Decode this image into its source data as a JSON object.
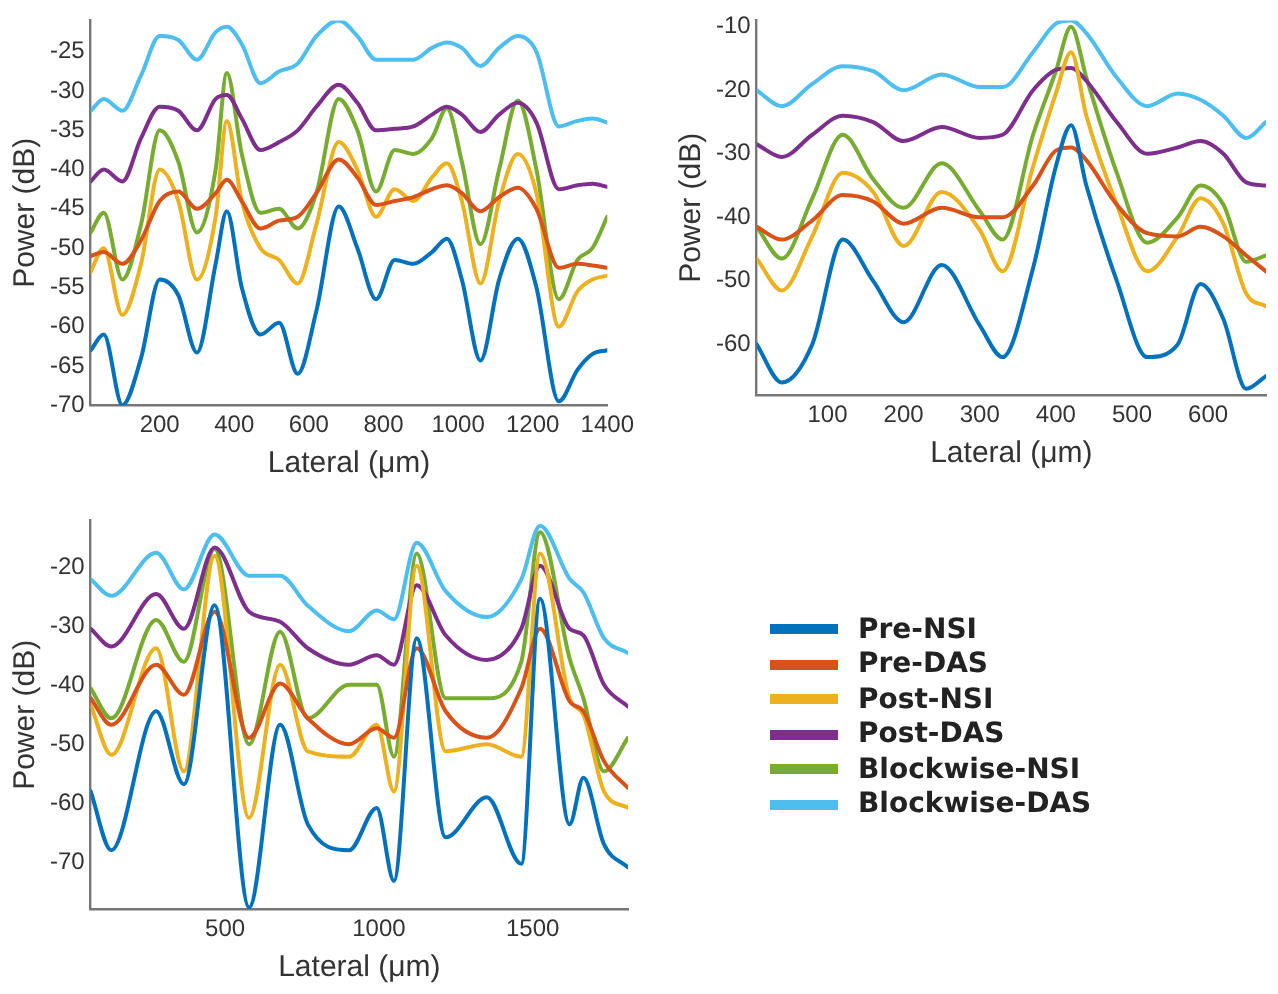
{
  "chart_data": [
    {
      "type": "line",
      "xlabel": "Lateral (μm)",
      "ylabel": "Power (dB)",
      "xlim": [
        15,
        1400
      ],
      "ylim": [
        -70,
        -21
      ],
      "xticks": [
        200,
        400,
        600,
        800,
        1000,
        1200,
        1400
      ],
      "yticks": [
        -70,
        -65,
        -60,
        -55,
        -50,
        -45,
        -40,
        -35,
        -30,
        -25
      ],
      "grid": false,
      "legend": false,
      "marker": "none",
      "x": [
        15,
        50,
        100,
        150,
        200,
        250,
        300,
        350,
        380,
        420,
        470,
        520,
        570,
        620,
        680,
        730,
        780,
        830,
        880,
        930,
        970,
        1010,
        1060,
        1110,
        1160,
        1210,
        1270,
        1320,
        1360,
        1400
      ],
      "series": [
        {
          "color": "#0072bd",
          "values": [
            -63,
            -61,
            -70,
            -64,
            -54,
            -56,
            -63.3,
            -52,
            -45.3,
            -55,
            -61,
            -59.5,
            -66,
            -58,
            -44.7,
            -50,
            -56.5,
            -51.5,
            -52,
            -50.5,
            -48.8,
            -54,
            -64.3,
            -54,
            -48.8,
            -55,
            -69.5,
            -65.5,
            -63.5,
            -63
          ]
        },
        {
          "color": "#d95319",
          "values": [
            -51,
            -50.5,
            -52,
            -49,
            -44,
            -42.8,
            -45,
            -43,
            -41.3,
            -44,
            -47.5,
            -46.5,
            -46,
            -43,
            -38.7,
            -41,
            -44.5,
            -44,
            -43.5,
            -42.5,
            -42,
            -43,
            -45.3,
            -43.5,
            -42.3,
            -45,
            -52.5,
            -52,
            -52.2,
            -52.5
          ]
        },
        {
          "color": "#edb120",
          "values": [
            -53,
            -50,
            -58.5,
            -52,
            -40,
            -44,
            -54,
            -46,
            -33.8,
            -44,
            -50,
            -51.5,
            -54.5,
            -47,
            -36.5,
            -40,
            -46,
            -42.5,
            -44,
            -41,
            -39.2,
            -44,
            -54.5,
            -44,
            -38,
            -43,
            -60,
            -55.5,
            -54,
            -53.5
          ]
        },
        {
          "color": "#7e2f8e",
          "values": [
            -41.5,
            -40,
            -41.5,
            -36,
            -32,
            -32.5,
            -35,
            -31,
            -30.5,
            -33.5,
            -37.5,
            -36.5,
            -35,
            -32,
            -29.2,
            -31.5,
            -35,
            -34.8,
            -34.5,
            -33,
            -32,
            -33,
            -35.2,
            -33,
            -31.5,
            -34,
            -42.5,
            -42,
            -41.8,
            -42.2
          ]
        },
        {
          "color": "#77ac30",
          "values": [
            -48,
            -45.5,
            -54,
            -47,
            -35,
            -39,
            -48,
            -40,
            -27.7,
            -38,
            -45.5,
            -45,
            -47.5,
            -43,
            -31,
            -35,
            -42.8,
            -37.5,
            -38,
            -36,
            -32.2,
            -39,
            -49.5,
            -40,
            -31.2,
            -40,
            -56.5,
            -51.5,
            -50,
            -46
          ]
        },
        {
          "color": "#4dbeee",
          "values": [
            -32.5,
            -31,
            -32.5,
            -28,
            -23,
            -23.5,
            -26,
            -22.5,
            -21.8,
            -24,
            -29,
            -27.5,
            -26.5,
            -23,
            -21,
            -23,
            -26,
            -26,
            -26,
            -24.5,
            -23.8,
            -24.5,
            -26.8,
            -24.5,
            -23,
            -25,
            -34.5,
            -33.8,
            -33.5,
            -34
          ]
        }
      ]
    },
    {
      "type": "line",
      "xlabel": "Lateral (μm)",
      "ylabel": "Power (dB)",
      "xlim": [
        7,
        676
      ],
      "ylim": [
        -68,
        -9
      ],
      "xticks": [
        100,
        200,
        300,
        400,
        500,
        600
      ],
      "yticks": [
        -60,
        -50,
        -40,
        -30,
        -20,
        -10
      ],
      "grid": false,
      "legend": false,
      "marker": "none",
      "x": [
        7,
        40,
        80,
        120,
        160,
        200,
        250,
        300,
        330,
        370,
        400,
        420,
        440,
        480,
        520,
        560,
        590,
        620,
        650,
        676
      ],
      "series": [
        {
          "color": "#0072bd",
          "values": [
            -60,
            -66,
            -60,
            -43.5,
            -50,
            -56.5,
            -47.5,
            -57,
            -62,
            -48,
            -32,
            -25.5,
            -35,
            -50,
            -62,
            -60,
            -50.5,
            -56,
            -67,
            -65
          ]
        },
        {
          "color": "#d95319",
          "values": [
            -41.5,
            -43.5,
            -40.5,
            -36.5,
            -37.5,
            -41,
            -38.5,
            -40,
            -40,
            -35,
            -29.5,
            -29,
            -31,
            -38,
            -42.5,
            -43,
            -41.5,
            -43,
            -46,
            -48.5
          ]
        },
        {
          "color": "#edb120",
          "values": [
            -46.5,
            -51.5,
            -43,
            -33,
            -36,
            -44.5,
            -36,
            -42,
            -48.5,
            -32,
            -20.5,
            -14,
            -24,
            -38,
            -48.5,
            -43,
            -37,
            -41,
            -52,
            -54
          ]
        },
        {
          "color": "#7e2f8e",
          "values": [
            -28.5,
            -30.5,
            -27,
            -24,
            -25,
            -28,
            -25.8,
            -27.5,
            -27,
            -20,
            -16.8,
            -16.5,
            -18.5,
            -25,
            -30,
            -29,
            -28,
            -30,
            -34.5,
            -35
          ]
        },
        {
          "color": "#77ac30",
          "values": [
            -41.5,
            -46.5,
            -37,
            -27,
            -34,
            -38.5,
            -31.5,
            -39,
            -43.5,
            -27,
            -17,
            -10,
            -18,
            -33,
            -44,
            -40,
            -35,
            -38,
            -47,
            -46
          ]
        },
        {
          "color": "#4dbeee",
          "values": [
            -20,
            -22.5,
            -19,
            -16.2,
            -17,
            -20,
            -17.5,
            -19.5,
            -19.5,
            -14,
            -9.5,
            -9,
            -11,
            -18,
            -22.5,
            -20.5,
            -21.5,
            -24,
            -27.5,
            -25
          ]
        }
      ]
    },
    {
      "type": "line",
      "xlabel": "Lateral (μm)",
      "ylabel": "Power (dB)",
      "xlim": [
        63,
        1810
      ],
      "ylim": [
        -78,
        -12
      ],
      "xticks": [
        500,
        1000,
        1500
      ],
      "yticks": [
        -70,
        -60,
        -50,
        -40,
        -30,
        -20
      ],
      "grid": false,
      "legend": "right",
      "marker": "none",
      "x": [
        63,
        130,
        276,
        366,
        466,
        578,
        679,
        769,
        903,
        993,
        1049,
        1123,
        1217,
        1351,
        1463,
        1524,
        1620,
        1665,
        1732,
        1810
      ],
      "series": [
        {
          "name": "Pre-NSI",
          "color": "#0072bd",
          "values": [
            -58,
            -68,
            -44.4,
            -56.8,
            -26.4,
            -77.7,
            -46.7,
            -63.6,
            -68,
            -60.8,
            -73.2,
            -32,
            -65.8,
            -59,
            -70.3,
            -25.3,
            -63.6,
            -55.7,
            -67,
            -70.9
          ]
        },
        {
          "name": "Pre-DAS",
          "color": "#d95319",
          "values": [
            -42.2,
            -46.7,
            -36.5,
            -41.6,
            -27.5,
            -48.9,
            -39.7,
            -45.6,
            -50,
            -47.3,
            -48.9,
            -33.7,
            -44.4,
            -48.9,
            -40.5,
            -30.4,
            -42.7,
            -44.4,
            -52.9,
            -57.4
          ]
        },
        {
          "name": "Post-NSI",
          "color": "#edb120",
          "values": [
            -43.3,
            -51.8,
            -33.7,
            -54.6,
            -18,
            -62.5,
            -36.5,
            -51.2,
            -52.1,
            -46.7,
            -58,
            -19.7,
            -51.2,
            -50,
            -52.1,
            -17.6,
            -42.2,
            -45,
            -58,
            -60.8
          ]
        },
        {
          "name": "Post-DAS",
          "color": "#7e2f8e",
          "values": [
            -30.4,
            -33.4,
            -24.5,
            -30.4,
            -16.6,
            -27.5,
            -29.2,
            -33.7,
            -36.5,
            -34.9,
            -36.5,
            -23,
            -31.5,
            -35.7,
            -30.4,
            -19.7,
            -30.4,
            -31.5,
            -39.9,
            -43.6
          ]
        },
        {
          "name": "Blockwise-NSI",
          "color": "#77ac30",
          "values": [
            -40.5,
            -45.6,
            -28.9,
            -36,
            -16.8,
            -50,
            -30.9,
            -45.6,
            -39.9,
            -39.9,
            -52.1,
            -17.6,
            -42.2,
            -42.2,
            -36,
            -14,
            -35.4,
            -42.2,
            -54.6,
            -48.9
          ]
        },
        {
          "name": "Blockwise-DAS",
          "color": "#4dbeee",
          "values": [
            -22,
            -24.8,
            -17.5,
            -23.7,
            -14.4,
            -21.4,
            -21.4,
            -26.5,
            -30.8,
            -27.3,
            -28.8,
            -15.8,
            -24,
            -28.4,
            -22,
            -12.9,
            -21.9,
            -24.2,
            -32,
            -34.5
          ]
        }
      ]
    }
  ]
}
